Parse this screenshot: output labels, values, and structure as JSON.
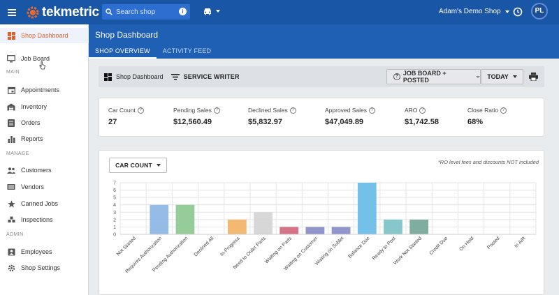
{
  "app": {
    "logo_text": "tekmetric",
    "search_placeholder": "Search shop",
    "shop_name": "Adam's Demo Shop",
    "user_initials": "PL"
  },
  "sidebar": {
    "items": [
      {
        "label": "Shop Dashboard",
        "icon": "dashboard-icon",
        "active": true
      },
      {
        "label": "Job Board",
        "icon": "monitor-icon"
      }
    ],
    "section_main": "MAIN",
    "main_items": [
      {
        "label": "Appointments",
        "icon": "calendar-icon"
      },
      {
        "label": "Inventory",
        "icon": "warehouse-icon"
      },
      {
        "label": "Orders",
        "icon": "list-icon"
      },
      {
        "label": "Reports",
        "icon": "bar-chart-icon"
      }
    ],
    "section_manage": "MANAGE",
    "manage_items": [
      {
        "label": "Customers",
        "icon": "people-icon"
      },
      {
        "label": "Vendors",
        "icon": "truck-icon"
      },
      {
        "label": "Canned Jobs",
        "icon": "star-icon"
      },
      {
        "label": "Inspections",
        "icon": "puzzle-icon"
      }
    ],
    "section_admin": "ADMIN",
    "admin_items": [
      {
        "label": "Employees",
        "icon": "employees-icon"
      },
      {
        "label": "Shop Settings",
        "icon": "settings-icon"
      }
    ]
  },
  "page": {
    "title": "Shop Dashboard",
    "tabs": [
      "SHOP OVERVIEW",
      "ACTIVITY FEED"
    ]
  },
  "toolbar": {
    "dashboard_label": "Shop Dashboard",
    "service_writer_label": "SERVICE WRITER",
    "job_board_label": "JOB BOARD + POSTED",
    "period_label": "TODAY"
  },
  "stats": [
    {
      "label": "Car Count",
      "value": "27"
    },
    {
      "label": "Pending Sales",
      "value": "$12,560.49"
    },
    {
      "label": "Declined Sales",
      "value": "$5,832.97"
    },
    {
      "label": "Approved Sales",
      "value": "$47,049.89"
    },
    {
      "label": "ARO",
      "value": "$1,742.58"
    },
    {
      "label": "Close Ratio",
      "value": "68%"
    }
  ],
  "chart_panel": {
    "metric_label": "CAR COUNT",
    "note": "*RO level fees and discounts NOT included"
  },
  "chart_data": {
    "type": "bar",
    "categories": [
      "Not Started",
      "Requires Authorization",
      "Pending Authorization",
      "Declined All",
      "In-Progress",
      "Need to Order Parts",
      "Waiting on Parts",
      "Waiting on Customer",
      "Waiting on Sublet",
      "Balance Due",
      "Ready to Post",
      "Work Not Started",
      "Credit Due",
      "On Hold",
      "Posted",
      "In A/R"
    ],
    "values": [
      0,
      4,
      4,
      0,
      2,
      3,
      1,
      1,
      1,
      7,
      2,
      2,
      0,
      0,
      0,
      0
    ],
    "colors": [
      "#cccccc",
      "#8fb7e6",
      "#8fc995",
      "#cccccc",
      "#f2b46a",
      "#d5d5d5",
      "#d36a7e",
      "#8b8fc9",
      "#8b8fc9",
      "#6cbde8",
      "#7fc4c9",
      "#78a99a",
      "#cccccc",
      "#cccccc",
      "#cccccc",
      "#cccccc"
    ],
    "ylim": [
      0,
      7
    ],
    "yticks": [
      0,
      1,
      2,
      3,
      4,
      5,
      6,
      7
    ],
    "grid": true
  }
}
